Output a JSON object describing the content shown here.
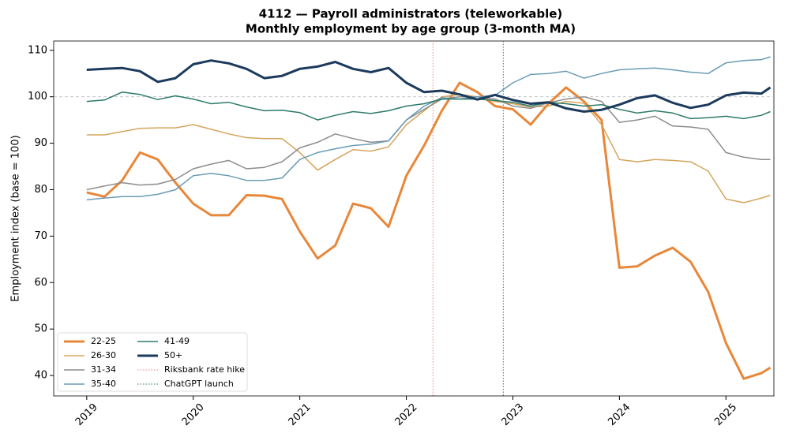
{
  "chart_data": {
    "type": "line",
    "title": "4112 — Payroll administrators (teleworkable)",
    "subtitle": "Monthly employment by age group (3-month MA)",
    "y_label": "Employment index (base = 100)",
    "x": [
      2019.0,
      2019.167,
      2019.333,
      2019.5,
      2019.667,
      2019.833,
      2020.0,
      2020.167,
      2020.333,
      2020.5,
      2020.667,
      2020.833,
      2021.0,
      2021.167,
      2021.333,
      2021.5,
      2021.667,
      2021.833,
      2022.0,
      2022.167,
      2022.333,
      2022.5,
      2022.667,
      2022.833,
      2023.0,
      2023.167,
      2023.333,
      2023.5,
      2023.667,
      2023.833,
      2024.0,
      2024.167,
      2024.333,
      2024.5,
      2024.667,
      2024.833,
      2025.0,
      2025.167,
      2025.333,
      2025.417
    ],
    "series": [
      {
        "name": "22-25",
        "color": "#e8873a",
        "linewidth": 3,
        "values": [
          79.4,
          78.5,
          82,
          88,
          86.5,
          81.5,
          77,
          74.5,
          74.5,
          78.8,
          78.7,
          78,
          71,
          65.2,
          68,
          77,
          76,
          72,
          83,
          89.5,
          97,
          103,
          101,
          98,
          97.3,
          94,
          98.5,
          102,
          99,
          95,
          63.2,
          63.5,
          65.8,
          67.5,
          64.5,
          58,
          47,
          39.3,
          40.5,
          41.7
        ]
      },
      {
        "name": "26-30",
        "color": "#d4a55c",
        "linewidth": 1.5,
        "values": [
          91.8,
          91.8,
          92.5,
          93.2,
          93.3,
          93.3,
          94,
          93,
          92,
          91.2,
          91,
          91,
          88,
          84.2,
          86.5,
          88.6,
          88.3,
          89.2,
          94,
          97,
          100,
          100.5,
          100,
          99,
          98.5,
          97.8,
          98,
          99,
          98.6,
          94,
          86.5,
          86,
          86.5,
          86.3,
          86,
          84,
          78,
          77.2,
          78.2,
          78.8
        ]
      },
      {
        "name": "31-34",
        "color": "#8c8c8c",
        "linewidth": 1.5,
        "values": [
          80,
          80.8,
          81.5,
          81,
          81.2,
          82.2,
          84.5,
          85.5,
          86.3,
          84.5,
          84.8,
          86,
          89,
          90.2,
          92,
          91,
          90.2,
          90.5,
          95,
          97.3,
          99.5,
          100,
          100,
          99.5,
          98,
          97.5,
          98.7,
          99.5,
          100,
          99,
          94.5,
          95,
          95.8,
          93.7,
          93.5,
          93,
          88,
          87,
          86.5,
          86.5
        ]
      },
      {
        "name": "35-40",
        "color": "#6a9cb5",
        "linewidth": 1.5,
        "values": [
          77.8,
          78.2,
          78.5,
          78.5,
          79,
          80,
          83,
          83.5,
          83,
          82,
          82,
          82.5,
          86.5,
          88,
          88.8,
          89.5,
          89.8,
          90.5,
          95,
          98,
          99.8,
          99.5,
          100,
          100.3,
          103,
          104.8,
          105,
          105.5,
          104,
          105,
          105.8,
          106,
          106.2,
          105.8,
          105.3,
          105,
          107.3,
          107.8,
          108,
          108.6
        ]
      },
      {
        "name": "41-49",
        "color": "#2e7a6a",
        "linewidth": 1.5,
        "values": [
          99,
          99.3,
          101,
          100.5,
          99.4,
          100.2,
          99.5,
          98.5,
          98.8,
          97.8,
          97,
          97.1,
          96.6,
          95,
          96,
          96.8,
          96.4,
          97,
          98,
          98.5,
          99.5,
          99.5,
          99.5,
          99.2,
          98.8,
          98,
          98.8,
          98.5,
          98,
          98.3,
          97.3,
          96.5,
          97,
          96.5,
          95.3,
          95.5,
          95.8,
          95.3,
          96,
          96.8
        ]
      },
      {
        "name": "50+",
        "color": "#1b3a5c",
        "linewidth": 3,
        "values": [
          105.8,
          106,
          106.2,
          105.5,
          103.2,
          104,
          107,
          107.8,
          107.2,
          106,
          104,
          104.5,
          106,
          106.5,
          107.5,
          106,
          105.3,
          106.2,
          103,
          101,
          101.3,
          100.5,
          99.4,
          100.4,
          99.3,
          98.5,
          98.8,
          97.5,
          96.8,
          97.2,
          98.3,
          99.7,
          100.3,
          98.7,
          97.6,
          98.3,
          100.3,
          100.9,
          100.7,
          102
        ]
      }
    ],
    "vlines": [
      {
        "name": "Riksbank rate hike",
        "x": 2022.25,
        "color": "#f08080"
      },
      {
        "name": "ChatGPT launch",
        "x": 2022.91,
        "color": "#2e7a6a"
      }
    ],
    "hline": 100,
    "xlim": [
      2018.69,
      2025.45
    ],
    "xticks": [
      2019,
      2020,
      2021,
      2022,
      2023,
      2024,
      2025
    ],
    "ylim": [
      35.6,
      112
    ],
    "yticks": [
      40,
      50,
      60,
      70,
      80,
      90,
      100,
      110
    ],
    "legend": "lower left"
  }
}
